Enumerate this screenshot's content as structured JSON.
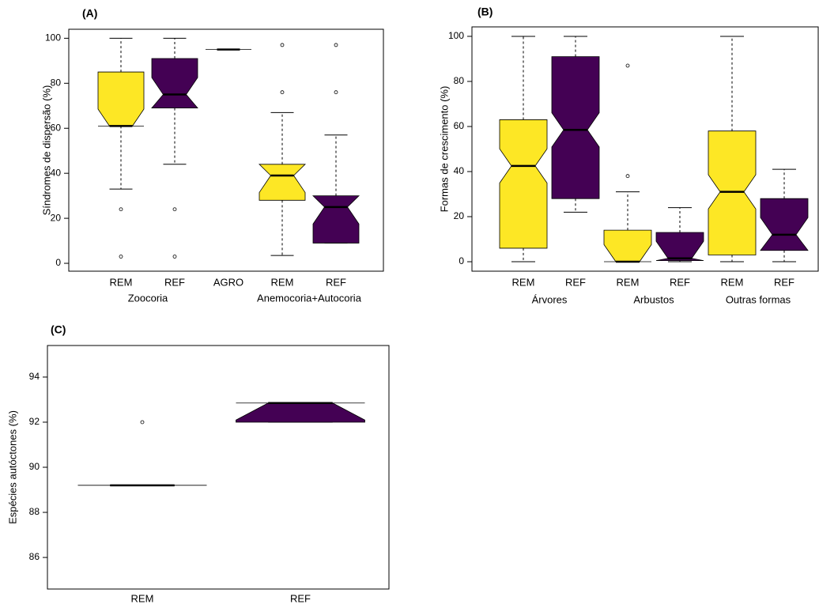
{
  "chart_data": [
    {
      "type": "box",
      "title": "(A)",
      "y_label": "Síndromes de dispersão (%)",
      "notch": true,
      "categories": [
        "REM",
        "REF",
        "AGRO",
        "REM",
        "REF"
      ],
      "groups": [
        {
          "name": "Zoocoria",
          "members": [
            0,
            1
          ]
        },
        {
          "name": "Anemocoria+Autocoria",
          "members": [
            3,
            4
          ]
        }
      ],
      "boxes": [
        {
          "min": 33,
          "q1": 61,
          "median": 61,
          "q3": 85,
          "max": 100,
          "outliers": [
            24,
            3
          ],
          "color": "#fde725"
        },
        {
          "min": 44,
          "q1": 69,
          "median": 75,
          "q3": 91,
          "max": 100,
          "outliers": [
            24,
            3
          ],
          "color": "#440154"
        },
        {
          "min": 95,
          "q1": 95,
          "median": 95,
          "q3": 95,
          "max": 95,
          "outliers": [],
          "color": "#440154"
        },
        {
          "min": 3.5,
          "q1": 28,
          "median": 39,
          "q3": 44,
          "max": 67,
          "outliers": [
            76,
            97
          ],
          "color": "#fde725"
        },
        {
          "min": 9,
          "q1": 9,
          "median": 25,
          "q3": 30,
          "max": 57,
          "outliers": [
            76,
            97
          ],
          "color": "#440154"
        }
      ],
      "ylim": [
        -3.5,
        104
      ],
      "yticks": [
        0,
        20,
        40,
        60,
        80,
        100
      ]
    },
    {
      "type": "box",
      "title": "(B)",
      "y_label": "Formas de crescimento (%)",
      "notch": true,
      "categories": [
        "REM",
        "REF",
        "REM",
        "REF",
        "REM",
        "REF"
      ],
      "groups": [
        {
          "name": "Árvores",
          "members": [
            0,
            1
          ]
        },
        {
          "name": "Arbustos",
          "members": [
            2,
            3
          ]
        },
        {
          "name": "Outras formas",
          "members": [
            4,
            5
          ]
        }
      ],
      "boxes": [
        {
          "min": 0,
          "q1": 6,
          "median": 42.5,
          "q3": 63,
          "max": 100,
          "outliers": [],
          "color": "#fde725"
        },
        {
          "min": 22,
          "q1": 28,
          "median": 58.5,
          "q3": 91,
          "max": 100,
          "outliers": [],
          "color": "#440154"
        },
        {
          "min": 0,
          "q1": 0,
          "median": 0,
          "q3": 14,
          "max": 31,
          "outliers": [
            38,
            87
          ],
          "color": "#fde725"
        },
        {
          "min": 0,
          "q1": 0.5,
          "median": 1.5,
          "q3": 13,
          "max": 24,
          "outliers": [],
          "color": "#440154"
        },
        {
          "min": 0,
          "q1": 3,
          "median": 31,
          "q3": 58,
          "max": 100,
          "outliers": [],
          "color": "#fde725"
        },
        {
          "min": 0,
          "q1": 5,
          "median": 12,
          "q3": 28,
          "max": 41,
          "outliers": [],
          "color": "#440154"
        }
      ],
      "ylim": [
        -4.2,
        104.2
      ],
      "yticks": [
        0,
        20,
        40,
        60,
        80,
        100
      ]
    },
    {
      "type": "box",
      "title": "(C)",
      "y_label": "Espécies autóctones (%)",
      "notch": true,
      "categories": [
        "REM",
        "REF"
      ],
      "groups": [],
      "boxes": [
        {
          "min": 89.2,
          "q1": 89.2,
          "median": 89.2,
          "q3": 89.2,
          "max": 89.2,
          "outliers": [
            92
          ],
          "color": "#fde725"
        },
        {
          "min": 92,
          "q1": 92,
          "median": 92.85,
          "q3": 92.85,
          "max": 92.85,
          "outliers": [],
          "color": "#440154"
        }
      ],
      "ylim": [
        84.6,
        95.4
      ],
      "yticks": [
        86,
        88,
        90,
        92,
        94
      ]
    }
  ]
}
